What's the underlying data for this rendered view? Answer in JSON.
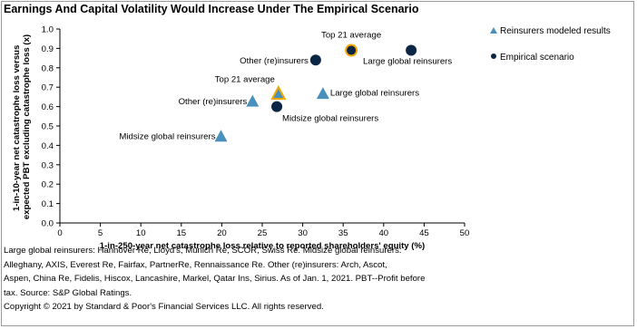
{
  "chart_data": {
    "type": "scatter",
    "title": "Earnings And Capital Volatility Would Increase Under The Empirical Scenario",
    "xlabel": "1-in-250-year net catastrophe loss relative to reported shareholders' equity (%)",
    "ylabel": [
      "1-in-10-year net catastrophe loss versus",
      "expected PBT excluding catastrophe loss (x)"
    ],
    "xlim": [
      0,
      50
    ],
    "ylim": [
      0,
      1.0
    ],
    "xticks": [
      "0",
      "5",
      "10",
      "15",
      "20",
      "25",
      "30",
      "35",
      "40",
      "45",
      "50"
    ],
    "yticks": [
      "0.0",
      "0.1",
      "0.2",
      "0.3",
      "0.4",
      "0.5",
      "0.6",
      "0.7",
      "0.8",
      "0.9",
      "1.0"
    ],
    "grid": false,
    "legend_position": "right",
    "series": [
      {
        "name": "Reinsurers modeled results",
        "marker": "triangle",
        "color": "#4a90bd",
        "points": [
          {
            "label": "Midsize global reinsurers",
            "x": 19.9,
            "y": 0.45
          },
          {
            "label": "Other (re)insurers",
            "x": 23.8,
            "y": 0.63
          },
          {
            "label": "Top 21 average",
            "x": 27.0,
            "y": 0.67,
            "highlight": true
          },
          {
            "label": "Large global reinsurers",
            "x": 32.5,
            "y": 0.67
          }
        ]
      },
      {
        "name": "Empirical scenario",
        "marker": "circle",
        "color": "#0b2545",
        "points": [
          {
            "label": "Midsize global reinsurers",
            "x": 26.8,
            "y": 0.6
          },
          {
            "label": "Other (re)insurers",
            "x": 31.6,
            "y": 0.84
          },
          {
            "label": "Top 21 average",
            "x": 36.0,
            "y": 0.89,
            "highlight": true
          },
          {
            "label": "Large global reinsurers",
            "x": 43.4,
            "y": 0.89
          }
        ]
      }
    ],
    "highlight_color": "#f2a900"
  },
  "notes": [
    "Large global reinsurers: Hannover Re, Lloyd's, Munich Re, SCOR, Swiss Re. Midsize global reinsurers:",
    "Alleghany, AXIS, Everest Re, Fairfax, PartnerRe, Rennaissance Re. Other (re)insurers: Arch, Ascot,",
    "Aspen, China Re, Fidelis, Hiscox, Lancashire, Markel, Qatar Ins, Sirius. As of Jan. 1, 2021. PBT--Profit before",
    "tax. Source: S&P Global Ratings.",
    "Copyright © 2021 by Standard & Poor's Financial Services LLC. All rights reserved."
  ]
}
